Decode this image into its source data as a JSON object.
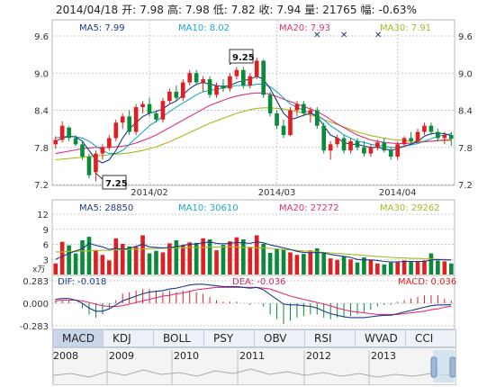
{
  "header": {
    "date": "2014/04/18",
    "open_label": "开:",
    "open": "7.98",
    "high_label": "高:",
    "high": "7.98",
    "low_label": "低:",
    "low": "7.82",
    "close_label": "收:",
    "close": "7.94",
    "vol_label": "量:",
    "vol": "21765",
    "chg_label": "幅:",
    "chg": "-0.63%"
  },
  "colors": {
    "up": "#e02020",
    "down": "#0a8a3a",
    "ma5": "#1a3a8a",
    "ma10": "#19a8c8",
    "ma20": "#e0307a",
    "ma30": "#a8b820",
    "grid": "#c8c8c8",
    "text": "#333333"
  },
  "price_panel": {
    "ma5": "MA5: 7.99",
    "ma10": "MA10: 8.02",
    "ma20": "MA20: 7.93",
    "ma30": "MA30: 7.91",
    "yticks": [
      "9.6",
      "9.0",
      "8.4",
      "7.8",
      "7.2"
    ],
    "xticks": [
      "2014/02",
      "2014/03",
      "2014/04"
    ],
    "high_mark": "9.25",
    "low_mark": "7.25",
    "star": "✕"
  },
  "volume_panel": {
    "ma5": "MA5: 28850",
    "ma10": "MA10: 30610",
    "ma20": "MA20: 27272",
    "ma30": "MA30: 29262",
    "yticks": [
      "12",
      "9",
      "6",
      "3"
    ],
    "unit": "x万"
  },
  "macd_panel": {
    "dif": "DIF: -0.018",
    "dea": "DEA: -0.036",
    "macd": "MACD: 0.036",
    "yticks": [
      "0.283",
      "0.000",
      "-0.283"
    ]
  },
  "tabs": [
    "MACD",
    "KDJ",
    "BOLL",
    "PSY",
    "OBV",
    "RSI",
    "WVAD",
    "CCI"
  ],
  "nav_years": [
    "2008",
    "2009",
    "2010",
    "2011",
    "2012",
    "2013"
  ],
  "chart_data": [
    {
      "type": "candlestick",
      "title": "",
      "ylim": [
        7.2,
        9.6
      ],
      "x_ticks": [
        "2014/02",
        "2014/03",
        "2014/04"
      ],
      "candles": [
        [
          7.85,
          7.98,
          7.78,
          7.92
        ],
        [
          7.92,
          8.22,
          7.88,
          8.15
        ],
        [
          8.12,
          8.14,
          7.9,
          7.95
        ],
        [
          7.95,
          8.0,
          7.82,
          7.85
        ],
        [
          7.85,
          7.9,
          7.6,
          7.65
        ],
        [
          7.65,
          7.7,
          7.3,
          7.35
        ],
        [
          7.4,
          7.75,
          7.25,
          7.7
        ],
        [
          7.7,
          7.85,
          7.6,
          7.8
        ],
        [
          7.8,
          8.0,
          7.75,
          7.95
        ],
        [
          7.95,
          8.25,
          7.9,
          8.2
        ],
        [
          8.2,
          8.35,
          8.1,
          8.3
        ],
        [
          8.3,
          8.4,
          8.0,
          8.05
        ],
        [
          8.05,
          8.5,
          8.0,
          8.45
        ],
        [
          8.45,
          8.55,
          8.35,
          8.5
        ],
        [
          8.5,
          8.6,
          8.3,
          8.35
        ],
        [
          8.35,
          8.4,
          8.2,
          8.25
        ],
        [
          8.25,
          8.6,
          8.2,
          8.55
        ],
        [
          8.55,
          8.75,
          8.5,
          8.7
        ],
        [
          8.7,
          8.8,
          8.55,
          8.6
        ],
        [
          8.6,
          8.9,
          8.55,
          8.85
        ],
        [
          8.85,
          9.05,
          8.8,
          9.0
        ],
        [
          9.0,
          9.05,
          8.8,
          8.85
        ],
        [
          8.85,
          8.95,
          8.7,
          8.9
        ],
        [
          8.9,
          8.95,
          8.6,
          8.65
        ],
        [
          8.65,
          8.85,
          8.6,
          8.8
        ],
        [
          8.8,
          8.9,
          8.7,
          8.75
        ],
        [
          8.75,
          9.0,
          8.7,
          8.95
        ],
        [
          8.95,
          9.1,
          8.9,
          9.05
        ],
        [
          9.05,
          9.1,
          8.75,
          8.8
        ],
        [
          8.8,
          9.0,
          8.75,
          8.95
        ],
        [
          8.95,
          9.25,
          8.9,
          9.2
        ],
        [
          9.2,
          9.22,
          8.6,
          8.65
        ],
        [
          8.65,
          8.7,
          8.3,
          8.35
        ],
        [
          8.35,
          8.4,
          8.1,
          8.15
        ],
        [
          8.15,
          8.25,
          7.95,
          8.0
        ],
        [
          8.0,
          8.45,
          7.98,
          8.4
        ],
        [
          8.4,
          8.55,
          8.3,
          8.5
        ],
        [
          8.5,
          8.55,
          8.3,
          8.35
        ],
        [
          8.35,
          8.45,
          8.2,
          8.4
        ],
        [
          8.4,
          8.45,
          8.1,
          8.15
        ],
        [
          8.15,
          8.2,
          7.7,
          7.75
        ],
        [
          7.75,
          7.9,
          7.6,
          7.85
        ],
        [
          7.85,
          8.0,
          7.8,
          7.95
        ],
        [
          7.95,
          8.0,
          7.7,
          7.75
        ],
        [
          7.75,
          7.95,
          7.7,
          7.9
        ],
        [
          7.9,
          7.95,
          7.75,
          7.8
        ],
        [
          7.8,
          7.9,
          7.65,
          7.7
        ],
        [
          7.7,
          7.85,
          7.65,
          7.8
        ],
        [
          7.8,
          7.92,
          7.75,
          7.88
        ],
        [
          7.88,
          7.95,
          7.72,
          7.75
        ],
        [
          7.75,
          7.8,
          7.6,
          7.65
        ],
        [
          7.65,
          7.9,
          7.6,
          7.85
        ],
        [
          7.85,
          7.98,
          7.8,
          7.95
        ],
        [
          7.95,
          8.05,
          7.85,
          7.9
        ],
        [
          7.9,
          8.1,
          7.88,
          8.05
        ],
        [
          8.05,
          8.2,
          8.0,
          8.15
        ],
        [
          8.15,
          8.2,
          8.0,
          8.05
        ],
        [
          8.05,
          8.1,
          7.9,
          7.95
        ],
        [
          7.95,
          8.05,
          7.85,
          8.0
        ],
        [
          8.0,
          8.05,
          7.82,
          7.94
        ]
      ],
      "ma5": [
        7.9,
        7.95,
        7.98,
        7.97,
        7.9,
        7.75,
        7.6,
        7.55,
        7.6,
        7.75,
        7.95,
        8.1,
        8.2,
        8.3,
        8.35,
        8.38,
        8.42,
        8.5,
        8.55,
        8.65,
        8.75,
        8.82,
        8.85,
        8.82,
        8.8,
        8.78,
        8.8,
        8.85,
        8.88,
        8.9,
        8.95,
        8.9,
        8.75,
        8.55,
        8.35,
        8.25,
        8.28,
        8.32,
        8.35,
        8.3,
        8.15,
        8.0,
        7.95,
        7.88,
        7.85,
        7.85,
        7.82,
        7.8,
        7.8,
        7.78,
        7.75,
        7.78,
        7.82,
        7.85,
        7.9,
        7.98,
        8.02,
        8.03,
        8.02,
        7.99
      ],
      "ma10": [
        7.95,
        7.97,
        7.98,
        7.97,
        7.95,
        7.9,
        7.82,
        7.75,
        7.7,
        7.7,
        7.75,
        7.85,
        7.95,
        8.05,
        8.15,
        8.22,
        8.3,
        8.38,
        8.45,
        8.52,
        8.58,
        8.65,
        8.7,
        8.72,
        8.74,
        8.76,
        8.78,
        8.8,
        8.8,
        8.8,
        8.82,
        8.82,
        8.78,
        8.7,
        8.6,
        8.5,
        8.45,
        8.4,
        8.35,
        8.32,
        8.25,
        8.15,
        8.08,
        8.0,
        7.95,
        7.9,
        7.88,
        7.85,
        7.83,
        7.82,
        7.8,
        7.8,
        7.82,
        7.84,
        7.86,
        7.9,
        7.94,
        7.98,
        8.0,
        8.02
      ],
      "ma20": [
        7.7,
        7.72,
        7.74,
        7.76,
        7.78,
        7.79,
        7.8,
        7.8,
        7.8,
        7.81,
        7.82,
        7.84,
        7.87,
        7.91,
        7.95,
        8.0,
        8.06,
        8.12,
        8.18,
        8.24,
        8.3,
        8.36,
        8.42,
        8.48,
        8.52,
        8.56,
        8.6,
        8.63,
        8.65,
        8.67,
        8.68,
        8.68,
        8.66,
        8.62,
        8.58,
        8.54,
        8.5,
        8.46,
        8.42,
        8.38,
        8.32,
        8.25,
        8.18,
        8.12,
        8.06,
        8.0,
        7.96,
        7.92,
        7.9,
        7.88,
        7.87,
        7.86,
        7.86,
        7.87,
        7.88,
        7.89,
        7.9,
        7.91,
        7.92,
        7.93
      ],
      "ma30": [
        7.6,
        7.61,
        7.62,
        7.63,
        7.64,
        7.65,
        7.66,
        7.67,
        7.68,
        7.69,
        7.7,
        7.71,
        7.73,
        7.75,
        7.78,
        7.81,
        7.85,
        7.89,
        7.94,
        7.99,
        8.04,
        8.09,
        8.14,
        8.19,
        8.23,
        8.27,
        8.31,
        8.35,
        8.38,
        8.41,
        8.43,
        8.44,
        8.44,
        8.43,
        8.42,
        8.4,
        8.38,
        8.35,
        8.32,
        8.29,
        8.25,
        8.21,
        8.17,
        8.13,
        8.09,
        8.05,
        8.02,
        7.99,
        7.97,
        7.95,
        7.93,
        7.92,
        7.91,
        7.9,
        7.9,
        7.9,
        7.9,
        7.91,
        7.91,
        7.91
      ]
    },
    {
      "type": "bar",
      "title": "",
      "ylim": [
        0,
        12
      ],
      "values": [
        2.2,
        6.5,
        5.8,
        4.2,
        6.8,
        7.5,
        4.8,
        3.9,
        2.8,
        7.2,
        6.1,
        5.6,
        5.5,
        7.8,
        4.2,
        4.7,
        4.4,
        6.2,
        6.8,
        5.8,
        6.4,
        6.3,
        7.2,
        7.0,
        4.8,
        5.9,
        6.6,
        7.4,
        7.0,
        5.5,
        7.8,
        6.1,
        4.3,
        5.1,
        4.9,
        4.4,
        3.9,
        4.1,
        4.8,
        5.2,
        4.4,
        3.2,
        2.9,
        3.6,
        3.0,
        2.4,
        3.4,
        2.9,
        2.2,
        2.0,
        2.4,
        2.6,
        2.8,
        2.5,
        2.5,
        2.8,
        4.2,
        2.8,
        2.6,
        2.2
      ],
      "ma5": [
        3.0,
        3.6,
        4.2,
        4.7,
        5.1,
        6.2,
        5.8,
        5.5,
        5.0,
        5.2,
        5.0,
        5.2,
        5.6,
        6.0,
        5.5,
        5.4,
        5.3,
        5.4,
        5.5,
        5.8,
        6.0,
        6.1,
        6.3,
        6.5,
        6.2,
        6.1,
        6.2,
        6.4,
        6.3,
        6.2,
        6.5,
        6.3,
        5.9,
        5.6,
        5.3,
        5.0,
        4.6,
        4.4,
        4.3,
        4.4,
        4.3,
        4.0,
        3.8,
        3.6,
        3.4,
        3.0,
        2.9,
        2.9,
        2.8,
        2.6,
        2.5,
        2.5,
        2.6,
        2.6,
        2.6,
        2.6,
        2.9,
        3.0,
        2.9,
        2.9
      ],
      "ma30": [
        4.5,
        4.5,
        4.6,
        4.6,
        4.7,
        4.7,
        4.8,
        4.8,
        4.8,
        4.9,
        4.9,
        5.0,
        5.0,
        5.1,
        5.1,
        5.2,
        5.2,
        5.3,
        5.3,
        5.3,
        5.4,
        5.4,
        5.4,
        5.5,
        5.5,
        5.5,
        5.5,
        5.5,
        5.4,
        5.4,
        5.3,
        5.3,
        5.2,
        5.1,
        5.0,
        4.9,
        4.8,
        4.7,
        4.6,
        4.5,
        4.4,
        4.3,
        4.2,
        4.1,
        4.0,
        3.9,
        3.8,
        3.7,
        3.6,
        3.5,
        3.4,
        3.3,
        3.3,
        3.2,
        3.2,
        3.1,
        3.1,
        3.0,
        3.0,
        2.9
      ]
    },
    {
      "type": "line",
      "title": "",
      "ylim": [
        -0.283,
        0.283
      ],
      "dif": [
        0.05,
        0.06,
        0.06,
        0.04,
        0.0,
        -0.06,
        -0.1,
        -0.1,
        -0.07,
        -0.02,
        0.03,
        0.06,
        0.09,
        0.12,
        0.14,
        0.15,
        0.16,
        0.18,
        0.19,
        0.21,
        0.23,
        0.24,
        0.24,
        0.23,
        0.22,
        0.21,
        0.21,
        0.21,
        0.2,
        0.19,
        0.2,
        0.17,
        0.11,
        0.05,
        -0.01,
        -0.02,
        -0.02,
        -0.03,
        -0.04,
        -0.06,
        -0.1,
        -0.13,
        -0.15,
        -0.17,
        -0.18,
        -0.18,
        -0.18,
        -0.17,
        -0.16,
        -0.15,
        -0.15,
        -0.13,
        -0.11,
        -0.09,
        -0.07,
        -0.05,
        -0.03,
        -0.02,
        -0.02,
        -0.018
      ],
      "dea": [
        0.03,
        0.04,
        0.04,
        0.04,
        0.03,
        0.01,
        -0.01,
        -0.03,
        -0.04,
        -0.04,
        -0.03,
        -0.01,
        0.01,
        0.03,
        0.05,
        0.07,
        0.09,
        0.1,
        0.12,
        0.13,
        0.15,
        0.17,
        0.18,
        0.19,
        0.2,
        0.2,
        0.2,
        0.2,
        0.2,
        0.2,
        0.2,
        0.19,
        0.18,
        0.15,
        0.12,
        0.09,
        0.07,
        0.05,
        0.03,
        0.01,
        -0.01,
        -0.03,
        -0.06,
        -0.08,
        -0.1,
        -0.11,
        -0.12,
        -0.13,
        -0.14,
        -0.14,
        -0.14,
        -0.14,
        -0.13,
        -0.12,
        -0.11,
        -0.1,
        -0.08,
        -0.07,
        -0.05,
        -0.036
      ]
    }
  ]
}
